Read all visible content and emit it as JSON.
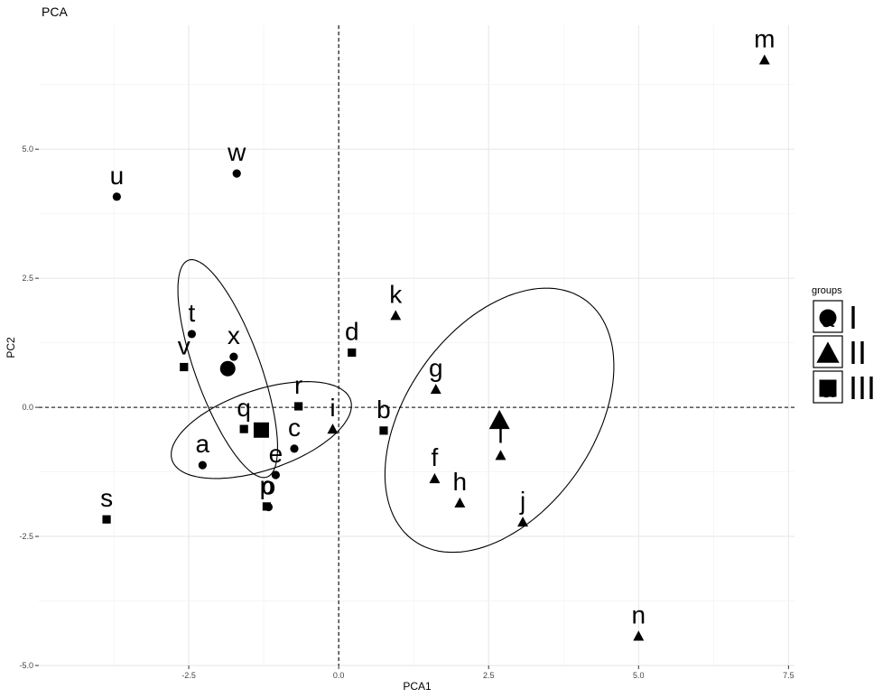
{
  "chart_data": {
    "type": "scatter",
    "title": "PCA",
    "xlabel": "PCA1",
    "ylabel": "PC2",
    "xlim": [
      -5.0,
      7.6
    ],
    "ylim": [
      -5.0,
      7.4
    ],
    "x_ticks": [
      -2.5,
      0.0,
      2.5,
      5.0,
      7.5
    ],
    "x_tick_labels": [
      "-2.5",
      "0.0",
      "2.5",
      "5.0",
      "7.5"
    ],
    "y_ticks": [
      -5.0,
      -2.5,
      0.0,
      2.5,
      5.0
    ],
    "y_tick_labels": [
      "-5.0",
      "-2.5",
      "0.0",
      "2.5",
      "5.0"
    ],
    "grid": true,
    "reference_lines": {
      "x": 0,
      "y": 0,
      "style": "dashed"
    },
    "legend": {
      "title": "groups",
      "placement": "right",
      "entries": [
        {
          "label": "I",
          "shape": "circle"
        },
        {
          "label": "II",
          "shape": "triangle"
        },
        {
          "label": "III",
          "shape": "square"
        }
      ],
      "key_letter": "a"
    },
    "series": [
      {
        "name": "I",
        "shape": "circle",
        "points": [
          {
            "label": "a",
            "x": -2.27,
            "y": -1.12
          },
          {
            "label": "c",
            "x": -0.74,
            "y": -0.8
          },
          {
            "label": "e",
            "x": -1.05,
            "y": -1.31
          },
          {
            "label": "o",
            "x": -1.17,
            "y": -1.93
          },
          {
            "label": "t",
            "x": -2.45,
            "y": 1.42
          },
          {
            "label": "u",
            "x": -3.7,
            "y": 4.08
          },
          {
            "label": "w",
            "x": -1.7,
            "y": 4.53
          },
          {
            "label": "x",
            "x": -1.75,
            "y": 0.98
          }
        ]
      },
      {
        "name": "II",
        "shape": "triangle",
        "points": [
          {
            "label": "f",
            "x": 1.6,
            "y": -1.38
          },
          {
            "label": "g",
            "x": 1.62,
            "y": 0.35
          },
          {
            "label": "h",
            "x": 2.02,
            "y": -1.85
          },
          {
            "label": "i",
            "x": -0.1,
            "y": -0.42
          },
          {
            "label": "j",
            "x": 3.07,
            "y": -2.22
          },
          {
            "label": "k",
            "x": 0.95,
            "y": 1.78
          },
          {
            "label": "l",
            "x": 2.7,
            "y": -0.93
          },
          {
            "label": "m",
            "x": 7.1,
            "y": 6.73
          },
          {
            "label": "n",
            "x": 5.0,
            "y": -4.43
          }
        ]
      },
      {
        "name": "III",
        "shape": "square",
        "points": [
          {
            "label": "b",
            "x": 0.75,
            "y": -0.45
          },
          {
            "label": "d",
            "x": 0.22,
            "y": 1.06
          },
          {
            "label": "p",
            "x": -1.2,
            "y": -1.92
          },
          {
            "label": "q",
            "x": -1.58,
            "y": -0.42
          },
          {
            "label": "r",
            "x": -0.67,
            "y": 0.02
          },
          {
            "label": "s",
            "x": -3.87,
            "y": -2.17
          },
          {
            "label": "v",
            "x": -2.58,
            "y": 0.78
          }
        ]
      }
    ],
    "centroids": [
      {
        "group": "I",
        "shape": "circle",
        "x": -1.85,
        "y": 0.75
      },
      {
        "group": "II",
        "shape": "triangle",
        "x": 2.68,
        "y": -0.25
      },
      {
        "group": "III",
        "shape": "square",
        "x": -1.29,
        "y": -0.44
      }
    ],
    "ellipses": [
      {
        "group": "I",
        "cx": -1.85,
        "cy": 0.75,
        "rx": 2.2,
        "ry": 0.55,
        "angle": -73
      },
      {
        "group": "II",
        "cx": 2.68,
        "cy": -0.25,
        "rx": 2.75,
        "ry": 1.62,
        "angle": 63
      },
      {
        "group": "III",
        "cx": -1.29,
        "cy": -0.44,
        "rx": 1.6,
        "ry": 0.76,
        "angle": 23
      }
    ]
  }
}
